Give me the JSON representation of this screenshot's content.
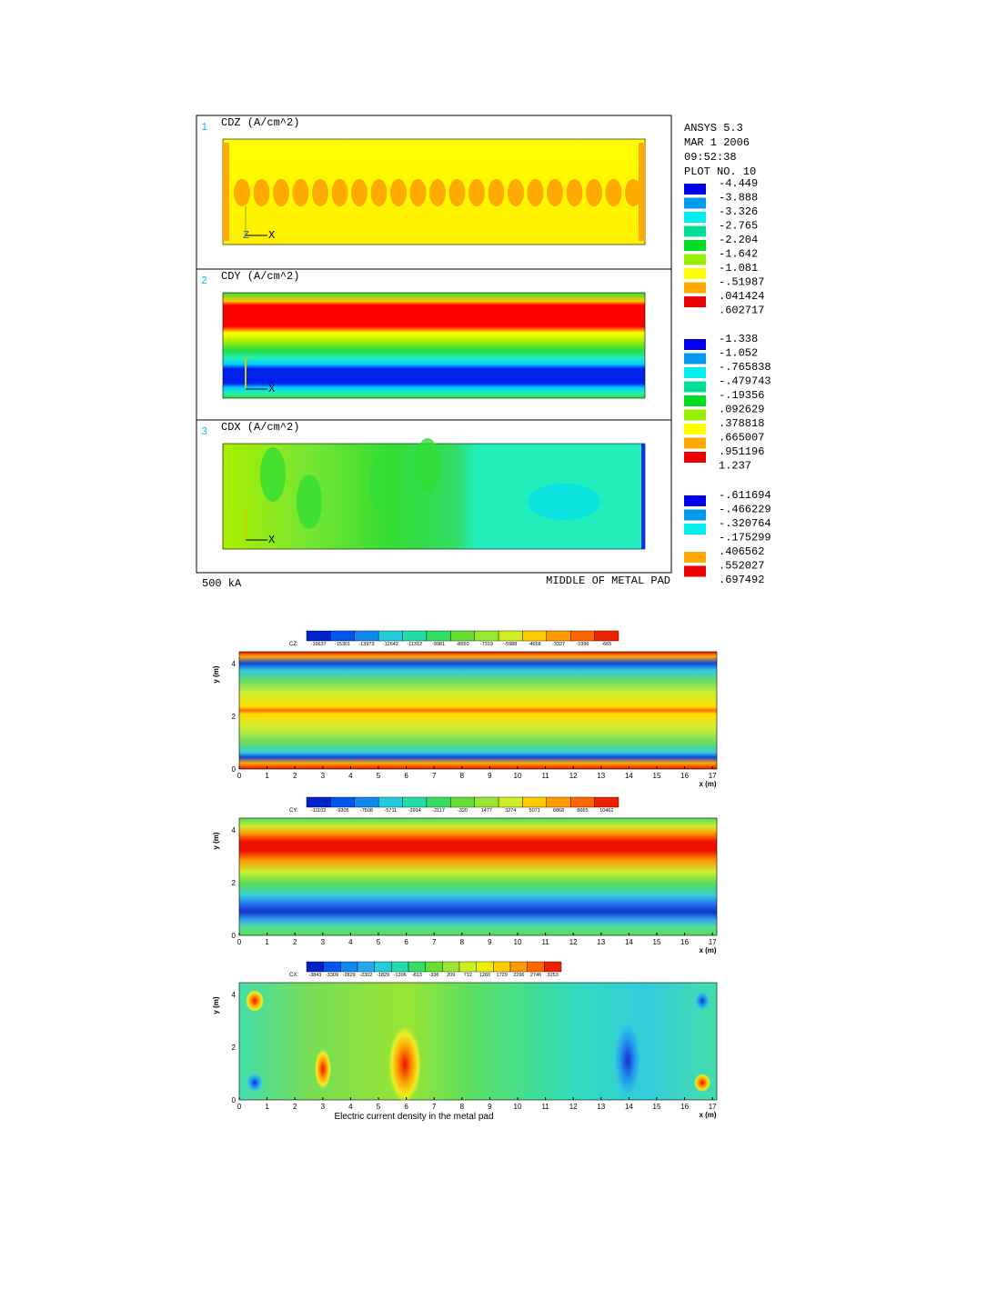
{
  "ansys": {
    "panels": [
      {
        "number": "1",
        "label": "CDZ (A/cm^2)",
        "triad": [
          "Z",
          "X"
        ]
      },
      {
        "number": "2",
        "label": "CDY (A/cm^2)",
        "triad": [
          "Y",
          "X"
        ]
      },
      {
        "number": "3",
        "label": "CDX (A/cm^2)",
        "triad": [
          "Y",
          "X"
        ]
      }
    ],
    "info": [
      "ANSYS 5.3",
      "MAR  1 2006",
      "09:52:38",
      "PLOT NO.  10"
    ],
    "legends": [
      [
        "-4.449",
        "-3.888",
        "-3.326",
        "-2.765",
        "-2.204",
        "-1.642",
        "-1.081",
        "-.51987",
        ".041424",
        ".602717"
      ],
      [
        "-1.338",
        "-1.052",
        "-.765838",
        "-.479743",
        "-.19356",
        ".092629",
        ".378818",
        ".665007",
        ".951196",
        "1.237"
      ],
      [
        "-.611694",
        "-.466229",
        "-.320764",
        "-.175299",
        ".406562",
        ".552027",
        ".697492"
      ]
    ],
    "footer_left": "500 kA",
    "footer_right": "MIDDLE OF METAL PAD"
  },
  "contours": {
    "plots": [
      {
        "colorbar_name": "CZ:",
        "colorbar_values": [
          "-16637",
          "-15301",
          "-13973",
          "-12642",
          "-11312",
          "-9981",
          "-8650",
          "-7319",
          "-5988",
          "-4658",
          "-3327",
          "-1996",
          "-665"
        ]
      },
      {
        "colorbar_name": "CY:",
        "colorbar_values": [
          "-11102",
          "-9305",
          "-7508",
          "-5711",
          "-3914",
          "-2117",
          "-320",
          "1477",
          "3274",
          "5071",
          "6868",
          "8665",
          "10462"
        ]
      },
      {
        "colorbar_name": "CX:",
        "colorbar_values": [
          "-3843",
          "-3309",
          "-2829",
          "-2302",
          "-1829",
          "-1306",
          "-813",
          "-336",
          "209",
          "712",
          "1260",
          "1729",
          "2296",
          "2746",
          "3253"
        ]
      }
    ],
    "x_ticks": [
      "0",
      "1",
      "2",
      "3",
      "4",
      "5",
      "6",
      "7",
      "8",
      "9",
      "10",
      "11",
      "12",
      "13",
      "14",
      "15",
      "16",
      "17"
    ],
    "y_ticks": [
      "0",
      "2",
      "4"
    ],
    "x_label": "x (m)",
    "y_label": "y (m)",
    "caption": "Electric current density in the metal pad"
  }
}
